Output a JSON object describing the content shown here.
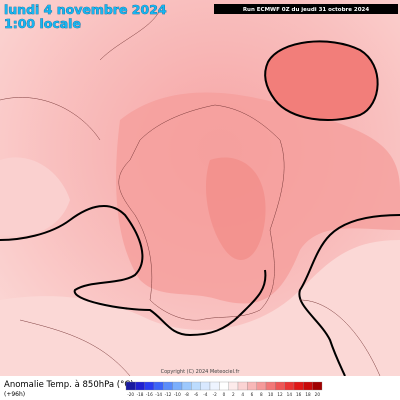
{
  "header": {
    "date": "lundi 4 novembre 2024",
    "time": "1:00 locale",
    "run": "Run ECMWF 0Z du jeudi 31 octobre 2024"
  },
  "footer": {
    "title": "Anomalie Temp. à 850hPa (°C)",
    "step": "(+96h)",
    "copyright": "Copyright (C) 2024 Meteociel.fr"
  },
  "colorbar": {
    "labels": [
      "-20",
      "-18",
      "-16",
      "-14",
      "-12",
      "-10",
      "-8",
      "-6",
      "-4",
      "-2",
      "0",
      "2",
      "4",
      "6",
      "8",
      "10",
      "12",
      "14",
      "16",
      "18",
      "20"
    ],
    "colors": [
      "#1a1aa0",
      "#2020d0",
      "#2a3cf0",
      "#3c64f8",
      "#5a8cfa",
      "#7aaefc",
      "#9cc8fd",
      "#bcdcfe",
      "#d8e8ff",
      "#eef4ff",
      "#ffffff",
      "#fdebeb",
      "#fbd3d3",
      "#f8b8b8",
      "#f59a9a",
      "#f27878",
      "#ee5656",
      "#ea3434",
      "#e01818",
      "#c80a0a",
      "#a00000"
    ]
  }
}
